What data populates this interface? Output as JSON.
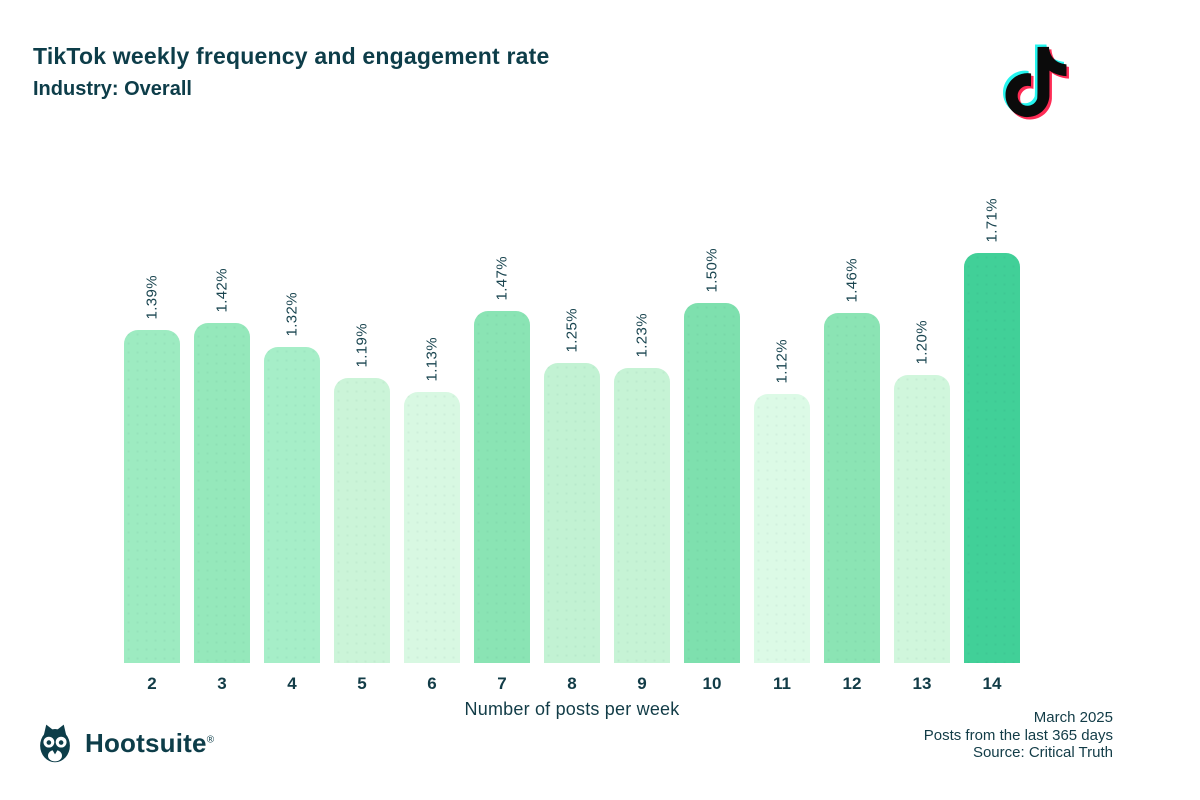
{
  "header": {
    "title": "TikTok weekly frequency and engagement rate",
    "subtitle": "Industry: Overall"
  },
  "chart_data": {
    "type": "bar",
    "title": "TikTok weekly frequency and engagement rate",
    "subtitle": "Industry: Overall",
    "categories": [
      "2",
      "3",
      "4",
      "5",
      "6",
      "7",
      "8",
      "9",
      "10",
      "11",
      "12",
      "13",
      "14"
    ],
    "values": [
      1.39,
      1.42,
      1.32,
      1.19,
      1.13,
      1.47,
      1.25,
      1.23,
      1.5,
      1.12,
      1.46,
      1.2,
      1.71
    ],
    "value_labels": [
      "1.39%",
      "1.42%",
      "1.32%",
      "1.19%",
      "1.13%",
      "1.47%",
      "1.25%",
      "1.23%",
      "1.50%",
      "1.12%",
      "1.46%",
      "1.20%",
      "1.71%"
    ],
    "bar_colors": [
      "#9debc1",
      "#95e8bb",
      "#a6eec8",
      "#cbf4d8",
      "#d8f8e2",
      "#8ae4b4",
      "#c2f2d3",
      "#c6f3d5",
      "#7ee0ae",
      "#dcfae6",
      "#8be4b4",
      "#d0f6dc",
      "#41d098"
    ],
    "xlabel": "Number of posts per week",
    "ylabel": "",
    "ylim": [
      0,
      1.71
    ],
    "grid": false,
    "legend": "none",
    "value_label_rotation": "vertical"
  },
  "icons": {
    "tiktok_logo": "tiktok-logo",
    "hootsuite_owl": "hootsuite-owl-logo"
  },
  "footer": {
    "brand": "Hootsuite",
    "registered_mark": "®",
    "meta_lines": [
      "March 2025",
      "Posts from the last 365 days",
      "Source: Critical Truth"
    ]
  },
  "colors": {
    "background": "#ffffff",
    "text": "#0d3d49",
    "tiktok_cyan": "#25f4ee",
    "tiktok_red": "#fe2c55",
    "tiktok_black": "#0b0b0b"
  }
}
